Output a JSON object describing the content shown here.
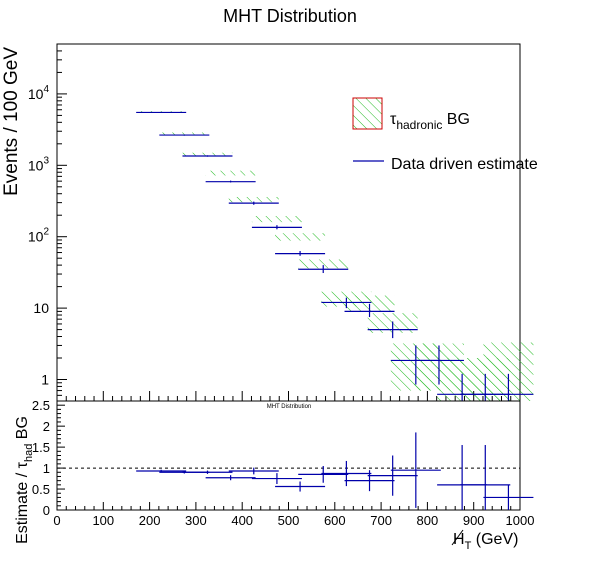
{
  "title": "MHT Distribution",
  "lower_title": "MHT Distribution",
  "colors": {
    "estimate": "#0000aa",
    "hatch": "#22bb22",
    "legend_box_border": "#cc0000",
    "axis": "#000000"
  },
  "legend": {
    "bg_label_prefix": "τ",
    "bg_label_sub": "hadronic",
    "bg_label_suffix": " BG",
    "estimate_label": "Data driven estimate"
  },
  "chart_data": [
    {
      "type": "scatter",
      "panel": "upper",
      "title": "MHT Distribution",
      "ylabel": "Events / 100 GeV",
      "yscale": "log",
      "ylim": [
        0.5,
        50000
      ],
      "xlim": [
        0,
        1000
      ],
      "y_ticks": [
        {
          "v": 10000,
          "base": "10",
          "exp": "4"
        },
        {
          "v": 1000,
          "base": "10",
          "exp": "3"
        },
        {
          "v": 100,
          "base": "10",
          "exp": "2"
        },
        {
          "v": 10,
          "base": "10",
          "exp": ""
        },
        {
          "v": 1,
          "base": "1",
          "exp": ""
        }
      ],
      "series": [
        {
          "name": "τhadronic BG",
          "style": "hatched-band",
          "bins": [
            {
              "x": 225,
              "lo": 5450,
              "hi": 5750
            },
            {
              "x": 275,
              "lo": 2650,
              "hi": 2880
            },
            {
              "x": 325,
              "lo": 1340,
              "hi": 1500
            },
            {
              "x": 375,
              "lo": 720,
              "hi": 840
            },
            {
              "x": 425,
              "lo": 305,
              "hi": 360
            },
            {
              "x": 475,
              "lo": 160,
              "hi": 195
            },
            {
              "x": 525,
              "lo": 88,
              "hi": 112
            },
            {
              "x": 575,
              "lo": 36,
              "hi": 48
            },
            {
              "x": 625,
              "lo": 10.5,
              "hi": 17
            },
            {
              "x": 675,
              "lo": 9,
              "hi": 15
            },
            {
              "x": 725,
              "lo": 4.5,
              "hi": 8.5
            },
            {
              "x": 775,
              "lo": 0.7,
              "hi": 3.2
            },
            {
              "x": 825,
              "lo": 0.7,
              "hi": 3.2
            },
            {
              "x": 875,
              "lo": 0.5,
              "hi": 2.0
            },
            {
              "x": 925,
              "lo": 0.5,
              "hi": 2.0
            },
            {
              "x": 975,
              "lo": 0.5,
              "hi": 3.3
            }
          ]
        },
        {
          "name": "Data driven estimate",
          "style": "points-with-errors",
          "points": [
            {
              "x": 225,
              "y": 5500,
              "lo": 5450,
              "hi": 5560
            },
            {
              "x": 275,
              "y": 2650,
              "lo": 2600,
              "hi": 2700
            },
            {
              "x": 325,
              "y": 1350,
              "lo": 1320,
              "hi": 1380
            },
            {
              "x": 375,
              "y": 590,
              "lo": 575,
              "hi": 610
            },
            {
              "x": 425,
              "y": 295,
              "lo": 280,
              "hi": 310
            },
            {
              "x": 475,
              "y": 135,
              "lo": 127,
              "hi": 145
            },
            {
              "x": 525,
              "y": 58,
              "lo": 54,
              "hi": 63
            },
            {
              "x": 575,
              "y": 35,
              "lo": 31,
              "hi": 40
            },
            {
              "x": 625,
              "y": 12,
              "lo": 10,
              "hi": 14
            },
            {
              "x": 675,
              "y": 9,
              "lo": 7.5,
              "hi": 11.5
            },
            {
              "x": 725,
              "y": 5,
              "lo": 3.8,
              "hi": 6.5
            },
            {
              "x": 775,
              "y": 1.85,
              "lo": 0.85,
              "hi": 3.0
            },
            {
              "x": 825,
              "y": 1.85,
              "lo": 0.85,
              "hi": 3.0
            },
            {
              "x": 875,
              "y": 0.62,
              "lo": 0.3,
              "hi": 1.2
            },
            {
              "x": 925,
              "y": 0.62,
              "lo": 0.3,
              "hi": 1.2
            },
            {
              "x": 975,
              "y": 0.62,
              "lo": 0.3,
              "hi": 1.2
            }
          ]
        }
      ]
    },
    {
      "type": "scatter",
      "panel": "lower",
      "title": "MHT Distribution",
      "xlabel_prefix": "H",
      "xlabel_sub": "T",
      "xlabel_suffix": " (GeV)",
      "ylabel_prefix": "Estimate / τ",
      "ylabel_sub": "had",
      "ylabel_suffix": " BG",
      "xlim": [
        0,
        1000
      ],
      "ylim": [
        0,
        2.6
      ],
      "reference_line": 1,
      "x_ticks": [
        "0",
        "100",
        "200",
        "300",
        "400",
        "500",
        "600",
        "700",
        "800",
        "900",
        "1000"
      ],
      "y_ticks": [
        "0",
        "0.5",
        "1",
        "1.5",
        "2",
        "2.5"
      ],
      "series": [
        {
          "name": "Estimate / τhad BG",
          "points": [
            {
              "x": 225,
              "y": 0.93,
              "err": 0.03
            },
            {
              "x": 275,
              "y": 0.9,
              "err": 0.03
            },
            {
              "x": 325,
              "y": 0.9,
              "err": 0.04
            },
            {
              "x": 375,
              "y": 0.77,
              "err": 0.06
            },
            {
              "x": 425,
              "y": 0.93,
              "err": 0.08
            },
            {
              "x": 475,
              "y": 0.75,
              "err": 0.13
            },
            {
              "x": 525,
              "y": 0.56,
              "err": 0.12
            },
            {
              "x": 575,
              "y": 0.85,
              "err": 0.2
            },
            {
              "x": 625,
              "y": 0.87,
              "err": 0.3
            },
            {
              "x": 675,
              "y": 0.7,
              "err": 0.25
            },
            {
              "x": 725,
              "y": 0.82,
              "err": 0.48
            },
            {
              "x": 775,
              "y": 0.95,
              "err": 0.9
            },
            {
              "x": 875,
              "y": 0.6,
              "err": 0.95
            },
            {
              "x": 925,
              "y": 0.6,
              "err": 0.95
            },
            {
              "x": 975,
              "y": 0.3,
              "err": 0.3
            }
          ]
        }
      ]
    }
  ]
}
